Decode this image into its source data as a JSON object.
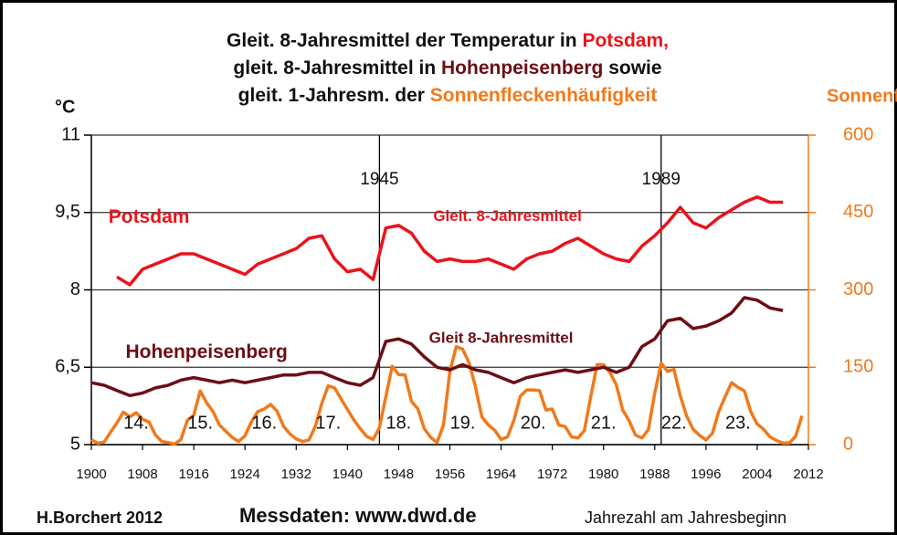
{
  "chart_data": {
    "type": "line",
    "title": [
      [
        {
          "text": "Gleit. 8-Jahresmittel der Temperatur in ",
          "color": "#111111"
        },
        {
          "text": "Potsdam,",
          "color": "#e8141c"
        }
      ],
      [
        {
          "text": "gleit. 8-Jahresmittel in ",
          "color": "#111111"
        },
        {
          "text": "Hohenpeisenberg",
          "color": "#6b0f14"
        },
        {
          "text": " sowie",
          "color": "#111111"
        }
      ],
      [
        {
          "text": "gleit. 1-Jahresm. der ",
          "color": "#111111"
        },
        {
          "text": "Sonnenfleckenhäufigkeit",
          "color": "#f07a1c"
        }
      ]
    ],
    "y_label": "°C",
    "y2_label": "Sonnenfl.",
    "y2_color": "#f07a1c",
    "xlim": [
      1900,
      2012
    ],
    "xticks": [
      1900,
      1908,
      1916,
      1924,
      1932,
      1940,
      1948,
      1956,
      1964,
      1972,
      1980,
      1988,
      1996,
      2004,
      2012
    ],
    "ylim": [
      5,
      11
    ],
    "yticks": [
      5,
      {
        "value": 6.5,
        "label": "6,5"
      },
      8,
      {
        "value": 9.5,
        "label": "9,5"
      },
      11
    ],
    "y2lim": [
      0,
      600
    ],
    "y2ticks": [
      0,
      150,
      300,
      450,
      600
    ],
    "grid": true,
    "series": [
      {
        "name": "Potsdam",
        "color": "#e8141c",
        "x": [
          1904,
          1906,
          1908,
          1910,
          1912,
          1914,
          1916,
          1918,
          1920,
          1922,
          1924,
          1926,
          1928,
          1930,
          1932,
          1934,
          1936,
          1938,
          1940,
          1942,
          1944,
          1946,
          1948,
          1950,
          1952,
          1954,
          1956,
          1958,
          1960,
          1962,
          1964,
          1966,
          1968,
          1970,
          1972,
          1974,
          1976,
          1978,
          1980,
          1982,
          1984,
          1986,
          1988,
          1990,
          1992,
          1994,
          1996,
          1998,
          2000,
          2002,
          2004,
          2006,
          2008
        ],
        "values": [
          8.25,
          8.1,
          8.4,
          8.5,
          8.6,
          8.7,
          8.7,
          8.6,
          8.5,
          8.4,
          8.3,
          8.5,
          8.6,
          8.7,
          8.8,
          9.0,
          9.05,
          8.6,
          8.35,
          8.4,
          8.2,
          9.2,
          9.25,
          9.1,
          8.75,
          8.55,
          8.6,
          8.55,
          8.55,
          8.6,
          8.5,
          8.4,
          8.6,
          8.7,
          8.75,
          8.9,
          9.0,
          8.85,
          8.7,
          8.6,
          8.55,
          8.85,
          9.05,
          9.3,
          9.6,
          9.3,
          9.2,
          9.4,
          9.55,
          9.7,
          9.8,
          9.7,
          9.7
        ]
      },
      {
        "name": "Hohenpeisenberg",
        "color": "#6b0f14",
        "x": [
          1900,
          1902,
          1904,
          1906,
          1908,
          1910,
          1912,
          1914,
          1916,
          1918,
          1920,
          1922,
          1924,
          1926,
          1928,
          1930,
          1932,
          1934,
          1936,
          1938,
          1940,
          1942,
          1944,
          1946,
          1948,
          1950,
          1952,
          1954,
          1956,
          1958,
          1960,
          1962,
          1964,
          1966,
          1968,
          1970,
          1972,
          1974,
          1976,
          1978,
          1980,
          1982,
          1984,
          1986,
          1988,
          1990,
          1992,
          1994,
          1996,
          1998,
          2000,
          2002,
          2004,
          2006,
          2008
        ],
        "values": [
          6.2,
          6.15,
          6.05,
          5.95,
          6.0,
          6.1,
          6.15,
          6.25,
          6.3,
          6.25,
          6.2,
          6.25,
          6.2,
          6.25,
          6.3,
          6.35,
          6.35,
          6.4,
          6.4,
          6.3,
          6.2,
          6.15,
          6.3,
          7.0,
          7.05,
          6.95,
          6.7,
          6.5,
          6.45,
          6.55,
          6.45,
          6.4,
          6.3,
          6.2,
          6.3,
          6.35,
          6.4,
          6.45,
          6.4,
          6.45,
          6.5,
          6.4,
          6.5,
          6.9,
          7.05,
          7.4,
          7.45,
          7.25,
          7.3,
          7.4,
          7.55,
          7.85,
          7.8,
          7.65,
          7.6
        ]
      },
      {
        "name": "Sonnenflecken",
        "color": "#f07a1c",
        "axis": "y2",
        "x": [
          1900,
          1901,
          1902,
          1903,
          1904,
          1905,
          1906,
          1907,
          1908,
          1909,
          1910,
          1911,
          1912,
          1913,
          1914,
          1915,
          1916,
          1917,
          1918,
          1919,
          1920,
          1921,
          1922,
          1923,
          1924,
          1925,
          1926,
          1927,
          1928,
          1929,
          1930,
          1931,
          1932,
          1933,
          1934,
          1935,
          1936,
          1937,
          1938,
          1939,
          1940,
          1941,
          1942,
          1943,
          1944,
          1945,
          1946,
          1947,
          1948,
          1949,
          1950,
          1951,
          1952,
          1953,
          1954,
          1955,
          1956,
          1957,
          1958,
          1959,
          1960,
          1961,
          1962,
          1963,
          1964,
          1965,
          1966,
          1967,
          1968,
          1969,
          1970,
          1971,
          1972,
          1973,
          1974,
          1975,
          1976,
          1977,
          1978,
          1979,
          1980,
          1981,
          1982,
          1983,
          1984,
          1985,
          1986,
          1987,
          1988,
          1989,
          1990,
          1991,
          1992,
          1993,
          1994,
          1995,
          1996,
          1997,
          1998,
          1999,
          2000,
          2001,
          2002,
          2003,
          2004,
          2005,
          2006,
          2007,
          2008,
          2009,
          2010,
          2011
        ],
        "values": [
          9.5,
          2.7,
          5,
          24,
          42,
          63,
          54,
          62,
          49,
          44,
          19,
          6,
          4,
          1,
          10,
          47,
          57,
          104,
          81,
          64,
          38,
          26,
          14,
          6,
          17,
          44,
          64,
          69,
          78,
          65,
          36,
          21,
          11,
          6,
          9,
          36,
          80,
          114,
          110,
          89,
          68,
          48,
          31,
          16,
          10,
          33,
          93,
          152,
          136,
          135,
          84,
          69,
          31,
          14,
          4,
          38,
          142,
          190,
          185,
          159,
          112,
          54,
          38,
          28,
          10,
          15,
          47,
          94,
          106,
          106,
          105,
          67,
          69,
          38,
          35,
          15,
          13,
          27,
          93,
          155,
          155,
          140,
          116,
          67,
          46,
          18,
          13,
          29,
          100,
          158,
          142,
          146,
          94,
          55,
          30,
          18,
          9,
          22,
          64,
          93,
          120,
          111,
          104,
          64,
          40,
          30,
          15,
          8,
          3,
          3,
          16,
          56
        ]
      }
    ],
    "series_labels": [
      {
        "text": "Potsdam",
        "x": 1909,
        "y": 9.4,
        "color": "#e8141c"
      },
      {
        "text": "Gleit. 8-Jahresmittel",
        "x": 1965,
        "y": 9.42,
        "color": "#e8141c"
      },
      {
        "text": "Hohenpeisenberg",
        "x": 1918,
        "y": 6.78,
        "color": "#6b0f14"
      },
      {
        "text": "Gleit 8-Jahresmittel",
        "x": 1964,
        "y": 7.05,
        "color": "#6b0f14"
      }
    ],
    "events": [
      {
        "text": "1945",
        "x": 1945
      },
      {
        "text": "1989",
        "x": 1989
      }
    ],
    "cycles": [
      {
        "text": "14.",
        "x": 1907
      },
      {
        "text": "15.",
        "x": 1917
      },
      {
        "text": "16.",
        "x": 1927
      },
      {
        "text": "17.",
        "x": 1937
      },
      {
        "text": "18.",
        "x": 1948
      },
      {
        "text": "19.",
        "x": 1958
      },
      {
        "text": "20.",
        "x": 1969
      },
      {
        "text": "21.",
        "x": 1980
      },
      {
        "text": "22.",
        "x": 1991
      },
      {
        "text": "23.",
        "x": 2001
      }
    ],
    "footer": [
      "H.Borchert 2012",
      "Messdaten: www.dwd.de",
      "Jahrezahl am Jahresbeginn"
    ]
  }
}
